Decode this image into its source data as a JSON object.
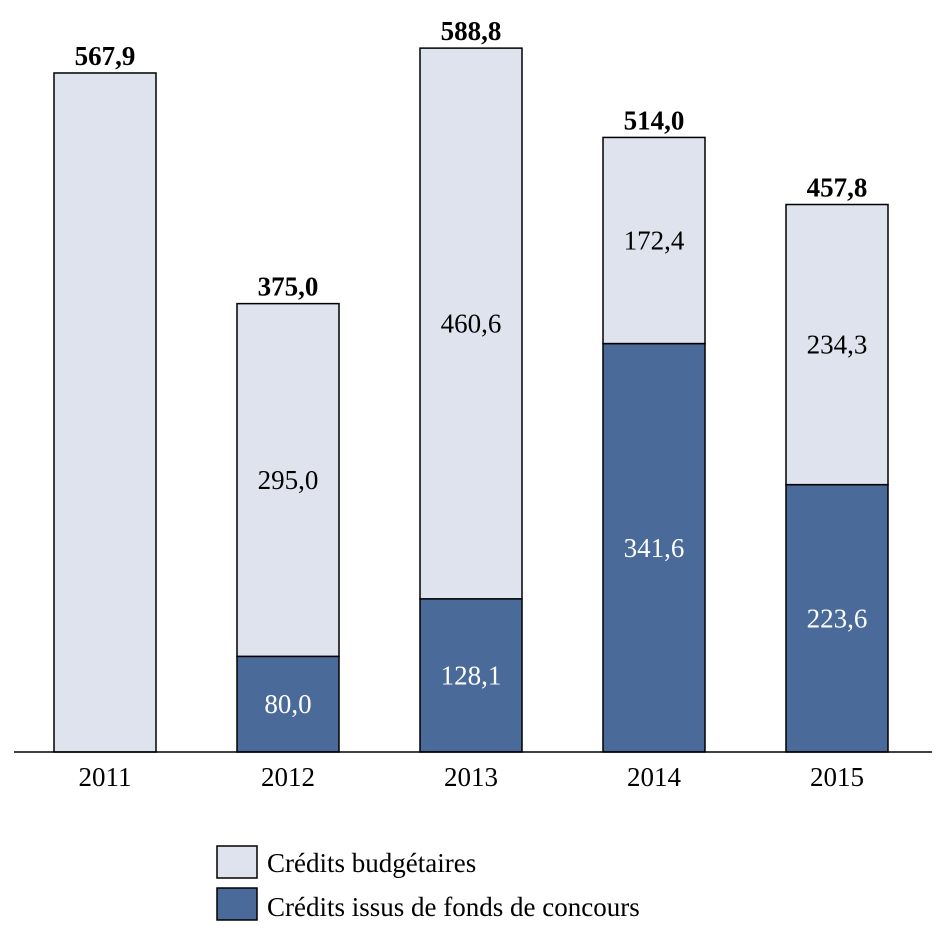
{
  "chart_data": {
    "type": "bar",
    "stacked": true,
    "categories": [
      "2011",
      "2012",
      "2013",
      "2014",
      "2015"
    ],
    "series": [
      {
        "name": "Crédits issus de fonds de concours",
        "values": [
          0,
          80.0,
          128.1,
          341.6,
          223.6
        ],
        "labels": [
          "",
          "80,0",
          "128,1",
          "341,6",
          "223,6"
        ],
        "color": "#4a6a99",
        "label_color": "#ffffff"
      },
      {
        "name": "Crédits budgétaires",
        "values": [
          567.9,
          295.0,
          460.6,
          172.4,
          234.3
        ],
        "labels": [
          "",
          "295,0",
          "460,6",
          "172,4",
          "234,3"
        ],
        "color": "#dfe3ee",
        "label_color": "#000000"
      }
    ],
    "totals": [
      "567,9",
      "375,0",
      "588,8",
      "514,0",
      "457,8"
    ],
    "ylim": [
      0,
      588.8
    ],
    "grid": false,
    "legend_position": "bottom",
    "title": "",
    "xlabel": "",
    "ylabel": ""
  }
}
